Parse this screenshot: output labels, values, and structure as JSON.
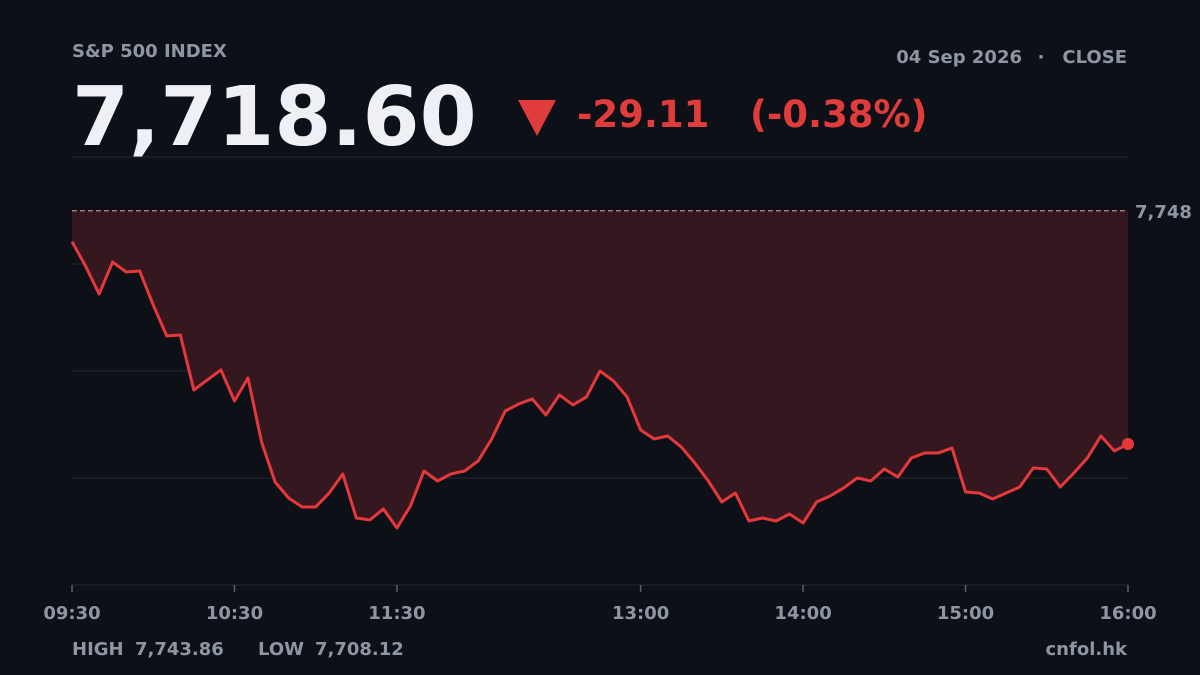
{
  "chart_data": {
    "type": "line",
    "title": "S&P 500 INDEX",
    "date": "04 Sep 2026",
    "session": "CLOSE",
    "price": "7,718.60",
    "change": "-29.11",
    "change_pct": "(-0.38%)",
    "high_label": "HIGH",
    "high": "7,743.86",
    "low_label": "LOW",
    "low": "7,708.12",
    "source": "cnfol.hk",
    "color": "#e5383b",
    "fill_color": "#35181f",
    "ref_line": {
      "value": 7747.71,
      "label": "7,748"
    },
    "ylim": [
      7701.0,
      7754.42
    ],
    "xticks": [
      "09:30",
      "10:30",
      "11:30",
      "13:00",
      "14:00",
      "15:00",
      "16:00"
    ],
    "x": [
      "09:30",
      "09:35",
      "09:40",
      "09:45",
      "09:50",
      "09:55",
      "10:00",
      "10:05",
      "10:10",
      "10:15",
      "10:20",
      "10:25",
      "10:30",
      "10:35",
      "10:40",
      "10:45",
      "10:50",
      "10:55",
      "11:00",
      "11:05",
      "11:10",
      "11:15",
      "11:20",
      "11:25",
      "11:30",
      "11:35",
      "11:40",
      "11:45",
      "11:50",
      "11:55",
      "12:00",
      "12:05",
      "12:10",
      "12:15",
      "12:20",
      "12:25",
      "12:30",
      "12:35",
      "12:40",
      "12:45",
      "12:50",
      "12:55",
      "13:00",
      "13:05",
      "13:10",
      "13:15",
      "13:20",
      "13:25",
      "13:30",
      "13:35",
      "13:40",
      "13:45",
      "13:50",
      "13:55",
      "14:00",
      "14:05",
      "14:10",
      "14:15",
      "14:20",
      "14:25",
      "14:30",
      "14:35",
      "14:40",
      "14:45",
      "14:50",
      "14:55",
      "15:00",
      "15:05",
      "15:10",
      "15:15",
      "15:20",
      "15:25",
      "15:30",
      "15:35",
      "15:40",
      "15:45",
      "15:50",
      "15:55",
      "16:00"
    ],
    "values": [
      7743.86,
      7740.81,
      7737.32,
      7741.31,
      7740.07,
      7740.19,
      7735.95,
      7732.08,
      7732.2,
      7725.34,
      7726.59,
      7727.84,
      7723.97,
      7726.84,
      7718.85,
      7713.86,
      7711.86,
      7710.74,
      7710.74,
      7712.48,
      7714.86,
      7709.36,
      7709.12,
      7710.49,
      7708.12,
      7710.86,
      7715.23,
      7713.98,
      7714.86,
      7715.23,
      7716.48,
      7719.22,
      7722.72,
      7723.59,
      7724.22,
      7722.22,
      7724.72,
      7723.47,
      7724.47,
      7727.71,
      7726.46,
      7724.47,
      7720.35,
      7719.22,
      7719.6,
      7718.23,
      7716.23,
      7713.98,
      7711.36,
      7712.48,
      7708.99,
      7709.36,
      7708.99,
      7709.86,
      7708.74,
      7711.36,
      7712.11,
      7713.11,
      7714.36,
      7713.98,
      7715.48,
      7714.48,
      7716.85,
      7717.48,
      7717.48,
      7718.1,
      7712.61,
      7712.48,
      7711.74,
      7712.48,
      7713.23,
      7715.6,
      7715.48,
      7713.23,
      7714.98,
      7716.85,
      7719.6,
      7717.73,
      7718.6
    ]
  }
}
